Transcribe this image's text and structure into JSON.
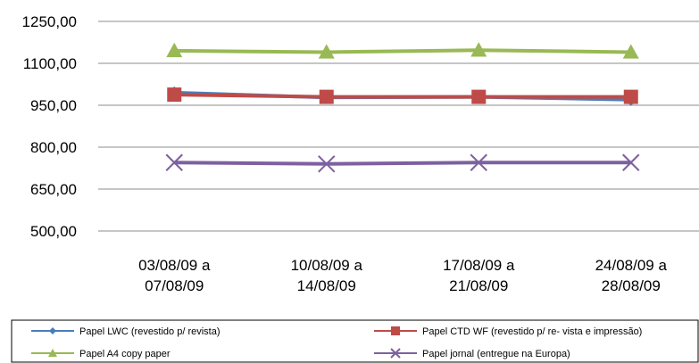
{
  "chart_data": {
    "type": "line",
    "title": "",
    "xlabel": "",
    "ylabel": "",
    "categories": [
      [
        "03/08/09 a",
        "07/08/09"
      ],
      [
        "10/08/09 a",
        "14/08/09"
      ],
      [
        "17/08/09 a",
        "21/08/09"
      ],
      [
        "24/08/09 a",
        "28/08/09"
      ]
    ],
    "y_ticks": [
      "500,00",
      "650,00",
      "800,00",
      "950,00",
      "1100,00",
      "1250,00"
    ],
    "ylim": [
      500,
      1250
    ],
    "grid": true,
    "legend_position": "bottom",
    "series": [
      {
        "name": "Papel LWC  (revestido  p/ revista)",
        "values": [
          995,
          978,
          980,
          970
        ],
        "color": "#4a7ebb",
        "marker": "diamond"
      },
      {
        "name": "Papel CTD WF (revestido p/ re- vista e impressão)",
        "values": [
          988,
          980,
          980,
          980
        ],
        "color": "#be4b48",
        "marker": "square"
      },
      {
        "name": "Papel A4 copy paper",
        "values": [
          1145,
          1140,
          1147,
          1140
        ],
        "color": "#98b954",
        "marker": "triangle"
      },
      {
        "name": "Papel jornal   (entregue na  Europa)",
        "values": [
          745,
          740,
          745,
          745
        ],
        "color": "#7d60a0",
        "marker": "x"
      }
    ]
  }
}
